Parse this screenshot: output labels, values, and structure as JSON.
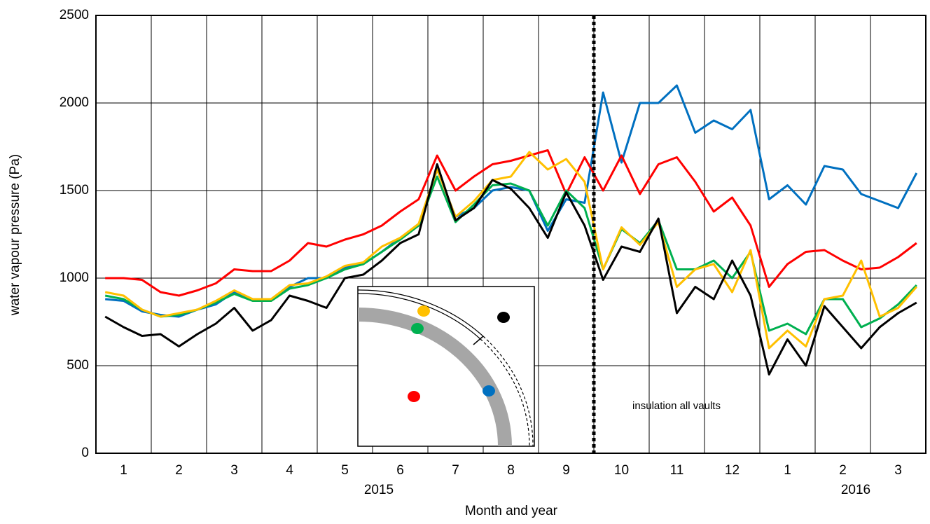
{
  "chart_data": {
    "type": "line",
    "x_label": "Month and year",
    "y_label": "water vapour pressure (Pa)",
    "annotation": "insulation all vaults",
    "year_labels": [
      "2015",
      "2016"
    ],
    "categories": [
      null,
      "1",
      null,
      null,
      "2",
      null,
      null,
      "3",
      null,
      null,
      "4",
      null,
      null,
      "5",
      null,
      null,
      "6",
      null,
      null,
      "7",
      null,
      null,
      "8",
      null,
      null,
      "9",
      null,
      null,
      "10",
      null,
      null,
      "11",
      null,
      null,
      "12",
      null,
      null,
      "1",
      null,
      null,
      "2",
      null,
      null,
      "3",
      null
    ],
    "ylim": [
      0,
      2500
    ],
    "yticks": [
      0,
      500,
      1000,
      1500,
      2000,
      2500
    ],
    "grid": true,
    "series": [
      {
        "color": "#0070c0",
        "values": [
          880,
          870,
          810,
          790,
          780,
          820,
          850,
          920,
          880,
          880,
          950,
          1000,
          1000,
          1060,
          1080,
          1150,
          1230,
          1300,
          1620,
          1350,
          1400,
          1500,
          1520,
          1500,
          1270,
          1450,
          1430,
          2060,
          1660,
          2000,
          2000,
          2100,
          1830,
          1900,
          1850,
          1960,
          1450,
          1530,
          1420,
          1640,
          1620,
          1480,
          1440,
          1400,
          1600
        ]
      },
      {
        "color": "#ff0000",
        "values": [
          1000,
          1000,
          990,
          920,
          900,
          930,
          970,
          1050,
          1040,
          1040,
          1100,
          1200,
          1180,
          1220,
          1250,
          1300,
          1380,
          1450,
          1700,
          1500,
          1580,
          1650,
          1670,
          1700,
          1730,
          1480,
          1690,
          1500,
          1700,
          1480,
          1650,
          1690,
          1550,
          1380,
          1460,
          1300,
          950,
          1080,
          1150,
          1160,
          1100,
          1050,
          1060,
          1120,
          1200
        ]
      },
      {
        "color": "#00b050",
        "values": [
          900,
          880,
          820,
          780,
          790,
          820,
          860,
          910,
          870,
          870,
          940,
          960,
          1000,
          1050,
          1080,
          1150,
          1220,
          1300,
          1580,
          1320,
          1420,
          1530,
          1540,
          1500,
          1300,
          1500,
          1400,
          1050,
          1280,
          1200,
          1330,
          1050,
          1050,
          1100,
          1000,
          1150,
          700,
          740,
          680,
          880,
          880,
          720,
          770,
          850,
          960
        ]
      },
      {
        "color": "#ffc000",
        "values": [
          920,
          900,
          820,
          780,
          800,
          820,
          870,
          930,
          880,
          880,
          960,
          970,
          1010,
          1070,
          1090,
          1180,
          1230,
          1310,
          1620,
          1350,
          1440,
          1560,
          1580,
          1720,
          1620,
          1680,
          1550,
          1050,
          1290,
          1190,
          1320,
          950,
          1050,
          1080,
          920,
          1160,
          600,
          700,
          610,
          880,
          900,
          1100,
          780,
          830,
          950
        ]
      },
      {
        "color": "#000000",
        "values": [
          780,
          720,
          670,
          680,
          610,
          680,
          740,
          830,
          700,
          760,
          900,
          870,
          830,
          1000,
          1020,
          1100,
          1200,
          1250,
          1650,
          1330,
          1400,
          1560,
          1510,
          1400,
          1230,
          1490,
          1300,
          990,
          1180,
          1150,
          1340,
          800,
          950,
          880,
          1100,
          900,
          450,
          650,
          500,
          840,
          720,
          600,
          720,
          800,
          860
        ]
      }
    ]
  }
}
